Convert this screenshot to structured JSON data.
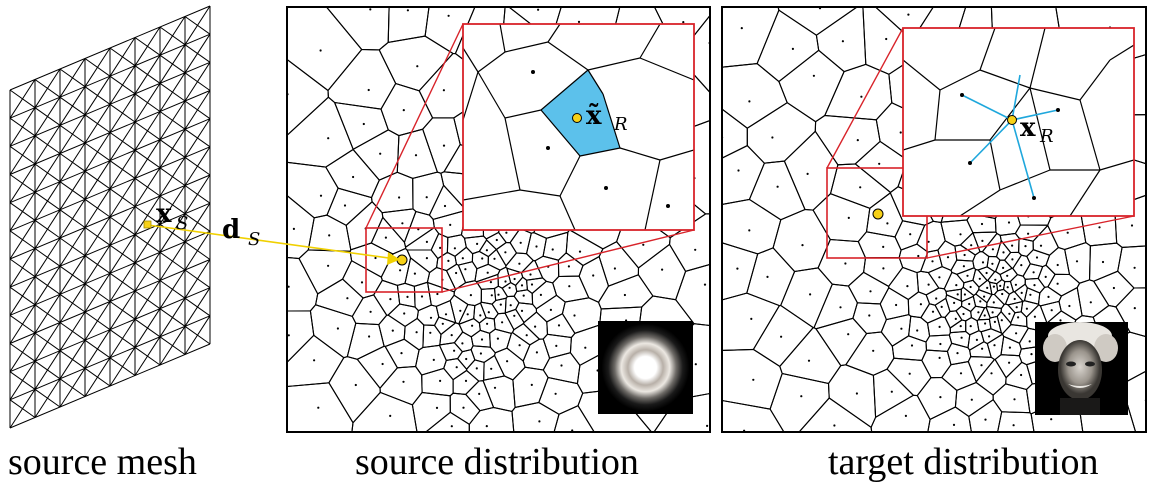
{
  "captions": {
    "left": "source mesh",
    "middle": "source distribution",
    "right": "target distribution"
  },
  "labels": {
    "xs_main": "x",
    "xs_sub": "S",
    "ds_main": "d",
    "ds_sub": "S",
    "xr_tilde_main": "x̃",
    "xr_tilde_sub": "R",
    "xr_main": "x",
    "xr_sub": "R"
  },
  "colors": {
    "ink": "#000000",
    "zoom_frame": "#d8232a",
    "highlight_cell": "#3fb6e8",
    "point_fill": "#f7d117",
    "arrow": "#f0d000",
    "link": "#1fa7dc"
  },
  "thumbnails": {
    "source_density": "radial-ring-glow",
    "target_density": "portrait-photo"
  }
}
